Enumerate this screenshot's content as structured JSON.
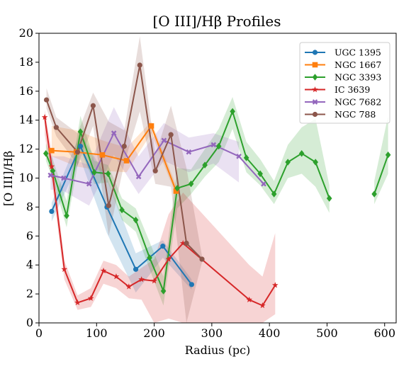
{
  "chart_data": {
    "type": "line",
    "title": "[O III]/Hβ Profiles",
    "xlabel": "Radius (pc)",
    "ylabel": "[O III]/Hβ",
    "xlim": [
      0,
      620
    ],
    "ylim": [
      0,
      20
    ],
    "xticks": [
      0,
      100,
      200,
      300,
      400,
      500,
      600
    ],
    "yticks": [
      0,
      2,
      4,
      6,
      8,
      10,
      12,
      14,
      16,
      18,
      20
    ],
    "grid": false,
    "legend_position": "top-right",
    "series": [
      {
        "name": "UGC 1395",
        "color": "#1f77b4",
        "marker": "circle",
        "x": [
          22,
          72,
          118,
          168,
          215,
          265
        ],
        "y": [
          7.7,
          12.2,
          8.0,
          3.7,
          5.3,
          2.65
        ],
        "lower": [
          7.0,
          11.3,
          6.2,
          2.1,
          4.5,
          2.3
        ],
        "upper": [
          8.3,
          13.1,
          10.0,
          4.8,
          5.7,
          3.0
        ]
      },
      {
        "name": "NGC 1667",
        "color": "#ff7f0e",
        "marker": "square",
        "x": [
          22,
          65,
          110,
          152,
          195,
          238
        ],
        "y": [
          11.9,
          11.8,
          11.6,
          11.2,
          13.6,
          9.1
        ],
        "lower": [
          11.5,
          10.8,
          10.5,
          10.4,
          13.1,
          8.8
        ],
        "upper": [
          13.6,
          13.3,
          12.6,
          12.1,
          13.9,
          9.5
        ]
      },
      {
        "name": "NGC 3393",
        "color": "#2ca02c",
        "marker": "diamond",
        "x": [
          12,
          24,
          48,
          72,
          96,
          120,
          144,
          168,
          192,
          216,
          240,
          264,
          288,
          312,
          336,
          360,
          384,
          408,
          432,
          456,
          480,
          504,
          528,
          582,
          606
        ],
        "y": [
          11.7,
          10.5,
          7.4,
          13.2,
          10.4,
          10.3,
          7.8,
          7.1,
          4.5,
          2.2,
          9.3,
          9.6,
          10.9,
          12.2,
          14.6,
          11.4,
          10.3,
          8.9,
          11.1,
          11.7,
          11.1,
          8.6,
          null,
          8.9,
          11.6
        ],
        "lower": [
          11.2,
          9.9,
          6.6,
          12.0,
          9.6,
          9.7,
          7.1,
          6.3,
          3.7,
          1.2,
          7.9,
          8.9,
          10.1,
          11.1,
          13.4,
          10.4,
          9.5,
          8.2,
          10.0,
          10.3,
          9.4,
          7.6,
          null,
          8.2,
          10.3
        ],
        "upper": [
          12.4,
          11.3,
          8.4,
          14.3,
          11.2,
          10.9,
          8.6,
          7.9,
          5.6,
          3.2,
          10.7,
          10.6,
          12.0,
          13.4,
          15.6,
          12.5,
          11.3,
          9.8,
          12.3,
          13.5,
          14.1,
          9.5,
          null,
          9.8,
          14.3
        ]
      },
      {
        "name": "IC 3639",
        "color": "#d62728",
        "marker": "star",
        "x": [
          10,
          22,
          44,
          67,
          90,
          112,
          134,
          156,
          178,
          200,
          225,
          250,
          365,
          388,
          410
        ],
        "y": [
          14.2,
          10.8,
          3.7,
          1.4,
          1.7,
          3.6,
          3.2,
          2.5,
          3.0,
          2.9,
          4.4,
          5.5,
          1.6,
          1.2,
          2.6
        ],
        "lower": [
          13.0,
          9.9,
          3.0,
          0.9,
          1.1,
          2.7,
          2.4,
          1.7,
          1.6,
          0.0,
          0.3,
          0.0,
          0.0,
          0.0,
          0.6
        ],
        "upper": [
          14.7,
          11.8,
          4.3,
          1.9,
          2.4,
          4.3,
          4.0,
          3.2,
          3.8,
          4.4,
          7.5,
          9.0,
          4.0,
          3.2,
          6.2
        ]
      },
      {
        "name": "NGC 7682",
        "color": "#9467bd",
        "marker": "x",
        "x": [
          20,
          43,
          87,
          130,
          173,
          217,
          260,
          303,
          347,
          390
        ],
        "y": [
          10.2,
          10.0,
          9.6,
          13.1,
          10.1,
          12.6,
          11.8,
          12.3,
          11.5,
          9.6
        ],
        "lower": [
          9.2,
          9.1,
          8.1,
          11.6,
          8.9,
          11.2,
          10.4,
          11.0,
          9.7,
          null
        ],
        "upper": [
          11.5,
          11.5,
          10.9,
          14.9,
          11.5,
          13.8,
          12.8,
          13.1,
          12.5,
          null
        ]
      },
      {
        "name": "NGC 788",
        "color": "#8c564b",
        "marker": "circle",
        "x": [
          13,
          30,
          67,
          94,
          121,
          148,
          175,
          202,
          229,
          256,
          283
        ],
        "y": [
          15.4,
          13.5,
          11.8,
          15.0,
          8.1,
          12.2,
          17.8,
          10.5,
          13.0,
          5.5,
          4.4
        ],
        "lower": [
          14.8,
          12.9,
          10.9,
          13.6,
          6.0,
          11.0,
          14.6,
          9.6,
          9.4,
          0.0,
          4.2
        ],
        "upper": [
          16.2,
          14.2,
          13.1,
          15.9,
          13.9,
          13.3,
          19.8,
          11.6,
          15.0,
          10.7,
          4.6
        ]
      }
    ]
  }
}
